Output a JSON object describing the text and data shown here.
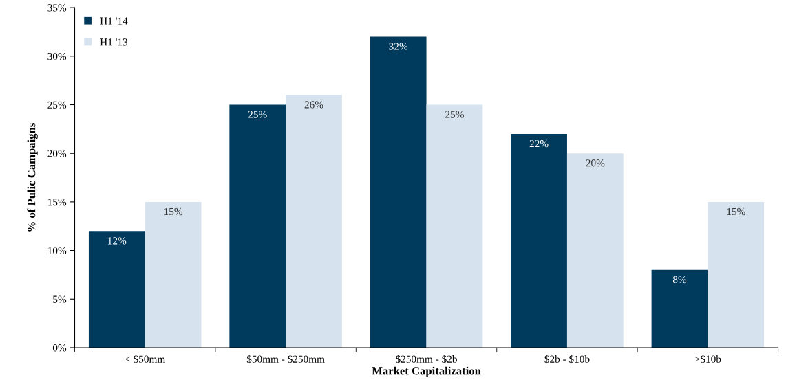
{
  "chart_data": {
    "type": "bar",
    "xlabel": "Market Capitalization",
    "ylabel": "% of Pulic Campaigns",
    "categories": [
      "< $50mm",
      "$50mm - $250mm",
      "$250mm - $2b",
      "$2b - $10b",
      ">$10b"
    ],
    "series": [
      {
        "name": "H1 '14",
        "color": "#003a5c",
        "values": [
          12,
          25,
          32,
          22,
          8
        ],
        "value_labels": [
          "12%",
          "25%",
          "32%",
          "22%",
          "8%"
        ]
      },
      {
        "name": "H1 '13",
        "color": "#d6e3ee",
        "values": [
          15,
          26,
          25,
          20,
          15
        ],
        "value_labels": [
          "15%",
          "26%",
          "25%",
          "20%",
          "15%"
        ]
      }
    ],
    "ylim": [
      0,
      35
    ],
    "yticks": [
      {
        "value": 0,
        "label": "0%"
      },
      {
        "value": 5,
        "label": "5%"
      },
      {
        "value": 10,
        "label": "10%"
      },
      {
        "value": 15,
        "label": "15%"
      },
      {
        "value": 20,
        "label": "20%"
      },
      {
        "value": 25,
        "label": "25%"
      },
      {
        "value": 30,
        "label": "30%"
      },
      {
        "value": 35,
        "label": "35%"
      }
    ],
    "grid": false,
    "legend": "top left"
  }
}
